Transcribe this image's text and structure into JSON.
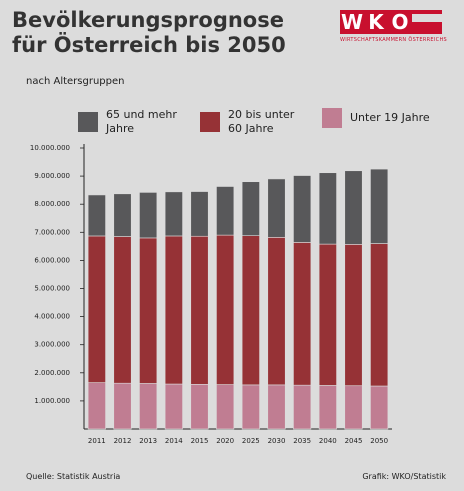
{
  "chart_data": {
    "type": "stacked-bar",
    "title": "Bevölkerungsprognose für Österreich bis 2050",
    "subtitle": "nach Altersgruppen",
    "logo": {
      "letters": [
        "W",
        "K",
        "O"
      ],
      "text": "WIRTSCHAFTSKAMMERN ÖSTERREICHS"
    },
    "source": "Quelle: Statistik Austria",
    "credit": "Grafik: WKO/Statistik",
    "categories": [
      "2011",
      "2012",
      "2013",
      "2014",
      "2015",
      "2020",
      "2025",
      "2030",
      "2035",
      "2040",
      "2045",
      "2050"
    ],
    "series": [
      {
        "name": "65 und mehr Jahre",
        "color": "#58585a",
        "values": [
          1460000,
          1520000,
          1620000,
          1570000,
          1590000,
          1730000,
          1920000,
          2080000,
          2380000,
          2540000,
          2620000,
          2650000
        ]
      },
      {
        "name": "20 bis unter 60 Jahre",
        "color": "#963236",
        "values": [
          5220000,
          5220000,
          5180000,
          5270000,
          5270000,
          5320000,
          5310000,
          5250000,
          5080000,
          5030000,
          5030000,
          5070000
        ]
      },
      {
        "name": "Unter 19 Jahre",
        "color": "#c07d92",
        "values": [
          1650000,
          1630000,
          1620000,
          1600000,
          1590000,
          1580000,
          1570000,
          1570000,
          1560000,
          1550000,
          1540000,
          1530000
        ]
      }
    ],
    "ylim": [
      0,
      10000000
    ],
    "yticks": [
      {
        "value": 1000000,
        "label": "1.000.000"
      },
      {
        "value": 2000000,
        "label": "2.000.000"
      },
      {
        "value": 3000000,
        "label": "3.000.000"
      },
      {
        "value": 4000000,
        "label": "4.000.000"
      },
      {
        "value": 5000000,
        "label": "5.000.000"
      },
      {
        "value": 6000000,
        "label": "6.000.000"
      },
      {
        "value": 7000000,
        "label": "7.000.000"
      },
      {
        "value": 8000000,
        "label": "8.000.000"
      },
      {
        "value": 9000000,
        "label": "9.000.000"
      },
      {
        "value": 10000000,
        "label": "10.000.000"
      }
    ]
  }
}
